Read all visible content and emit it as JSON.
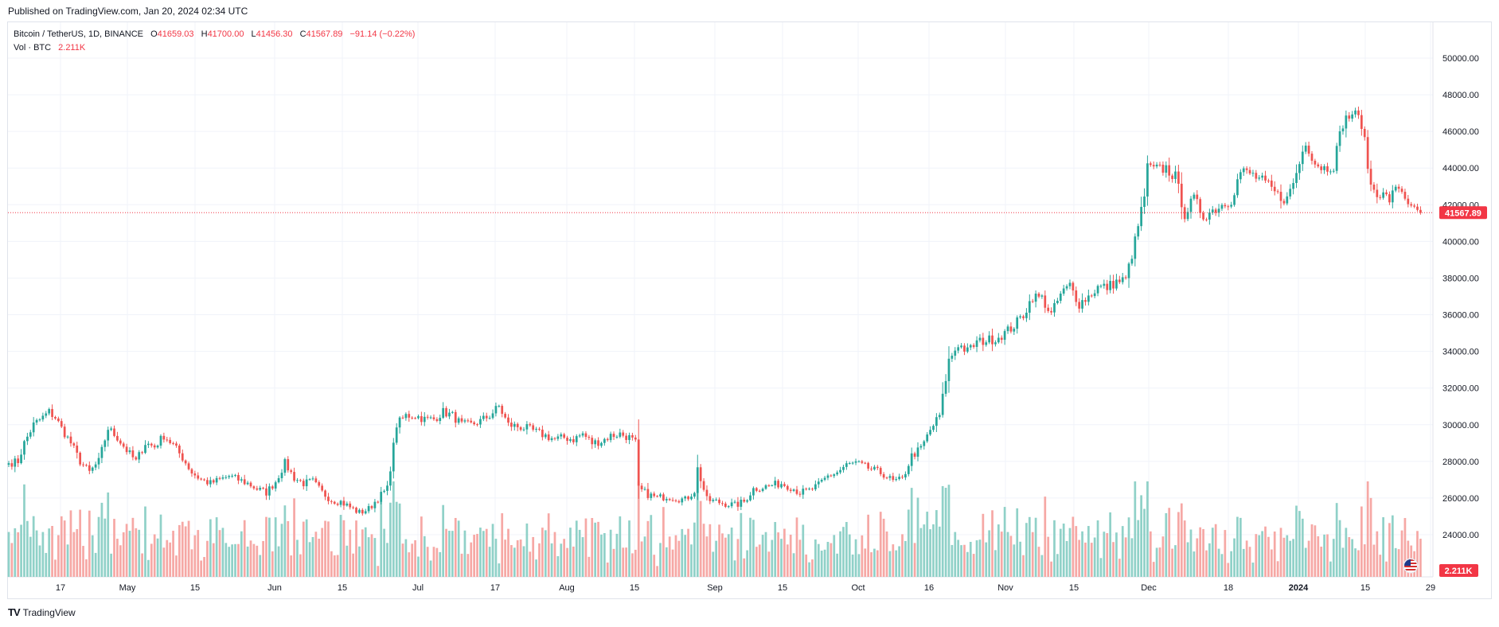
{
  "header": {
    "published": "Published on TradingView.com, Jan 20, 2024 02:34 UTC"
  },
  "legend": {
    "symbol": "Bitcoin / TetherUS, 1D, BINANCE",
    "o_label": "O",
    "o_value": "41659.03",
    "h_label": "H",
    "h_value": "41700.00",
    "l_label": "L",
    "l_value": "41456.30",
    "c_label": "C",
    "c_value": "41567.89",
    "change": "−91.14 (−0.22%)",
    "vol_label": "Vol · BTC",
    "vol_value": "2.211K"
  },
  "price_badge": "41567.89",
  "volume_badge": "2.211K",
  "brand": {
    "logo": "TV",
    "name": "TradingView"
  },
  "colors": {
    "up": "#26a69a",
    "down": "#ef5350",
    "vol_up": "#90d1c8",
    "vol_down": "#f6a8a5",
    "badge": "#f23645"
  },
  "chart_data": {
    "type": "candlestick",
    "y_ticks": [
      "24000.00",
      "26000.00",
      "28000.00",
      "30000.00",
      "32000.00",
      "34000.00",
      "36000.00",
      "38000.00",
      "40000.00",
      "42000.00",
      "44000.00",
      "46000.00",
      "48000.00",
      "50000.00"
    ],
    "ylim": [
      22500,
      51000
    ],
    "x_ticks": [
      "17",
      "May",
      "15",
      "Jun",
      "15",
      "Jul",
      "17",
      "Aug",
      "15",
      "Sep",
      "15",
      "Oct",
      "16",
      "Nov",
      "15",
      "Dec",
      "18",
      "2024",
      "15",
      "29"
    ],
    "last_price": 41567.89,
    "anchors": [
      [
        0,
        27900
      ],
      [
        3,
        28000
      ],
      [
        5,
        29000
      ],
      [
        8,
        30000
      ],
      [
        11,
        30400
      ],
      [
        13,
        30700
      ],
      [
        15,
        30400
      ],
      [
        17,
        29800
      ],
      [
        20,
        29000
      ],
      [
        23,
        28000
      ],
      [
        26,
        27400
      ],
      [
        29,
        28000
      ],
      [
        32,
        29800
      ],
      [
        35,
        29300
      ],
      [
        38,
        28600
      ],
      [
        41,
        28000
      ],
      [
        44,
        29000
      ],
      [
        47,
        28800
      ],
      [
        50,
        29400
      ],
      [
        53,
        28900
      ],
      [
        56,
        28200
      ],
      [
        59,
        27400
      ],
      [
        62,
        27000
      ],
      [
        65,
        26800
      ],
      [
        68,
        27000
      ],
      [
        71,
        27200
      ],
      [
        74,
        27000
      ],
      [
        77,
        26800
      ],
      [
        80,
        26500
      ],
      [
        83,
        26300
      ],
      [
        86,
        26900
      ],
      [
        89,
        27900
      ],
      [
        92,
        27100
      ],
      [
        95,
        26800
      ],
      [
        98,
        26900
      ],
      [
        101,
        26300
      ],
      [
        104,
        25900
      ],
      [
        107,
        25800
      ],
      [
        110,
        25500
      ],
      [
        113,
        25200
      ],
      [
        116,
        25400
      ],
      [
        119,
        26000
      ],
      [
        122,
        26500
      ],
      [
        125,
        30000
      ],
      [
        128,
        30500
      ],
      [
        131,
        30500
      ],
      [
        134,
        30300
      ],
      [
        137,
        30300
      ],
      [
        140,
        30700
      ],
      [
        143,
        30500
      ],
      [
        146,
        30000
      ],
      [
        149,
        30000
      ],
      [
        152,
        30200
      ],
      [
        155,
        30500
      ],
      [
        158,
        31000
      ],
      [
        161,
        30000
      ],
      [
        164,
        29900
      ],
      [
        167,
        29800
      ],
      [
        170,
        29600
      ],
      [
        173,
        29400
      ],
      [
        176,
        29200
      ],
      [
        179,
        29300
      ],
      [
        182,
        29200
      ],
      [
        185,
        29500
      ],
      [
        188,
        29000
      ],
      [
        191,
        29100
      ],
      [
        194,
        29400
      ],
      [
        197,
        29500
      ],
      [
        200,
        29300
      ],
      [
        202,
        29000
      ],
      [
        203,
        26500
      ],
      [
        206,
        26200
      ],
      [
        209,
        26000
      ],
      [
        212,
        26100
      ],
      [
        215,
        26000
      ],
      [
        218,
        25900
      ],
      [
        221,
        26400
      ],
      [
        222,
        27600
      ],
      [
        225,
        25900
      ],
      [
        228,
        25800
      ],
      [
        231,
        25700
      ],
      [
        234,
        25600
      ],
      [
        237,
        25800
      ],
      [
        240,
        26500
      ],
      [
        243,
        26600
      ],
      [
        246,
        26700
      ],
      [
        249,
        26800
      ],
      [
        252,
        26600
      ],
      [
        255,
        26300
      ],
      [
        258,
        26400
      ],
      [
        261,
        26700
      ],
      [
        264,
        27200
      ],
      [
        267,
        27400
      ],
      [
        270,
        27800
      ],
      [
        273,
        27900
      ],
      [
        276,
        27700
      ],
      [
        279,
        27500
      ],
      [
        282,
        27300
      ],
      [
        285,
        26900
      ],
      [
        288,
        27000
      ],
      [
        291,
        28300
      ],
      [
        294,
        28700
      ],
      [
        297,
        29700
      ],
      [
        300,
        30500
      ],
      [
        303,
        33500
      ],
      [
        306,
        34400
      ],
      [
        309,
        34000
      ],
      [
        312,
        34500
      ],
      [
        315,
        34600
      ],
      [
        318,
        34700
      ],
      [
        321,
        35000
      ],
      [
        324,
        35400
      ],
      [
        327,
        36000
      ],
      [
        330,
        37000
      ],
      [
        333,
        36900
      ],
      [
        336,
        36000
      ],
      [
        339,
        37100
      ],
      [
        342,
        37600
      ],
      [
        345,
        36600
      ],
      [
        348,
        37000
      ],
      [
        351,
        37500
      ],
      [
        354,
        37500
      ],
      [
        357,
        37800
      ],
      [
        360,
        37900
      ],
      [
        363,
        40000
      ],
      [
        366,
        42500
      ],
      [
        367,
        44000
      ],
      [
        370,
        43900
      ],
      [
        373,
        44000
      ],
      [
        376,
        43500
      ],
      [
        379,
        41500
      ],
      [
        382,
        42300
      ],
      [
        385,
        41400
      ],
      [
        388,
        41700
      ],
      [
        391,
        42000
      ],
      [
        394,
        42300
      ],
      [
        397,
        43800
      ],
      [
        400,
        43700
      ],
      [
        403,
        43400
      ],
      [
        406,
        43000
      ],
      [
        409,
        42500
      ],
      [
        412,
        42300
      ],
      [
        415,
        43700
      ],
      [
        418,
        45500
      ],
      [
        421,
        44300
      ],
      [
        424,
        44000
      ],
      [
        427,
        44200
      ],
      [
        430,
        46500
      ],
      [
        433,
        47000
      ],
      [
        436,
        46500
      ],
      [
        439,
        43000
      ],
      [
        442,
        42600
      ],
      [
        445,
        42300
      ],
      [
        448,
        43000
      ],
      [
        451,
        42200
      ],
      [
        452,
        41700
      ],
      [
        454,
        41600
      ],
      [
        455,
        41560
      ]
    ]
  }
}
